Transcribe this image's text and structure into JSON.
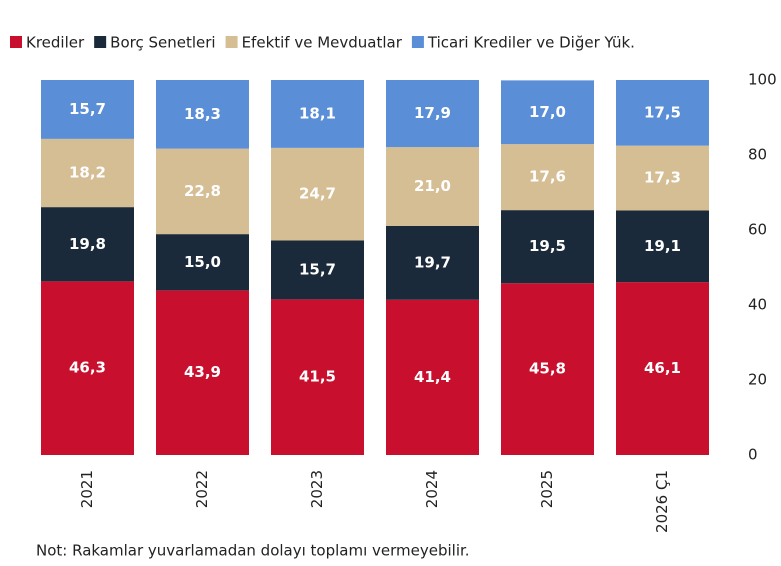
{
  "chart_data": {
    "type": "stacked_bar",
    "categories": [
      "2021",
      "2022",
      "2023",
      "2024",
      "2025",
      "2026 Ç1"
    ],
    "series": [
      {
        "name": "Krediler",
        "color": "#c8102e",
        "values": [
          46.3,
          43.9,
          41.5,
          41.4,
          45.8,
          46.1
        ],
        "value_labels": [
          "46,3",
          "43,9",
          "41,5",
          "41,4",
          "45,8",
          "46,1"
        ]
      },
      {
        "name": "Borç Senetleri",
        "color": "#1b2a3b",
        "values": [
          19.8,
          15.0,
          15.7,
          19.7,
          19.5,
          19.1
        ],
        "value_labels": [
          "19,8",
          "15,0",
          "15,7",
          "19,7",
          "19,5",
          "19,1"
        ]
      },
      {
        "name": "Efektif ve Mevduatlar",
        "color": "#d5bd94",
        "values": [
          18.2,
          22.8,
          24.7,
          21.0,
          17.6,
          17.3
        ],
        "value_labels": [
          "18,2",
          "22,8",
          "24,7",
          "21,0",
          "17,6",
          "17,3"
        ]
      },
      {
        "name": "Ticari Krediler ve Diğer Yük.",
        "color": "#5a8ed6",
        "values": [
          15.7,
          18.3,
          18.1,
          17.9,
          17.0,
          17.5
        ],
        "value_labels": [
          "15,7",
          "18,3",
          "18,1",
          "17,9",
          "17,0",
          "17,5"
        ]
      }
    ],
    "ylim": [
      0,
      100
    ],
    "yticks": [
      0,
      20,
      40,
      60,
      80,
      100
    ],
    "note": "Not: Rakamlar yuvarlamadan dolayı toplamı vermeyebilir."
  }
}
